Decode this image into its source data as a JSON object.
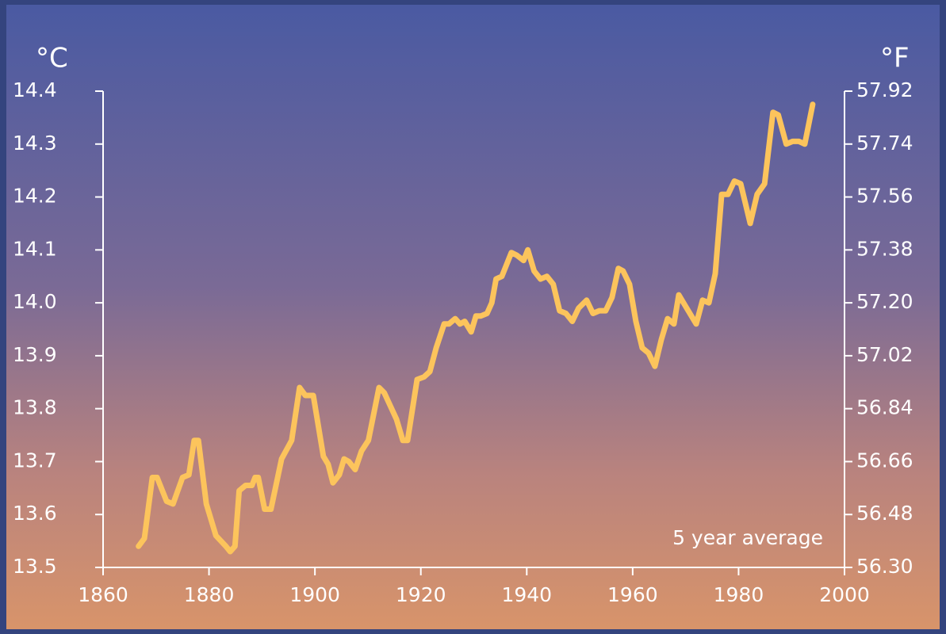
{
  "chart_data": {
    "type": "line",
    "ylabel": "°C",
    "y2label": "°F",
    "annotation": "5 year average",
    "color": "#fcc45c",
    "xlim": [
      1860,
      2000
    ],
    "xticks": [
      1860,
      1880,
      1900,
      1920,
      1940,
      1960,
      1980,
      2000
    ],
    "ylim": [
      13.5,
      14.4
    ],
    "yticks": [
      13.5,
      13.6,
      13.7,
      13.8,
      13.9,
      {
        "value": 14,
        "label": "14.0"
      },
      14.1,
      14.2,
      14.3,
      14.4
    ],
    "y2lim": [
      56.3,
      57.92
    ],
    "y2ticks": [
      {
        "value": 56.3,
        "label": "56.30"
      },
      56.48,
      56.66,
      56.84,
      57.02,
      {
        "value": 57.2,
        "label": "57.20"
      },
      57.38,
      57.56,
      57.74,
      57.92
    ],
    "x": [
      1866.7,
      1867.8,
      1869.3,
      1870.2,
      1872,
      1873.2,
      1875,
      1876.2,
      1877.2,
      1878,
      1879.5,
      1881.3,
      1883.2,
      1884,
      1884.9,
      1885.7,
      1886.9,
      1888.1,
      1888.7,
      1889.3,
      1890.5,
      1891.7,
      1893.7,
      1895.6,
      1897.1,
      1898.2,
      1899.7,
      1901.6,
      1902.5,
      1903.4,
      1904.6,
      1905.5,
      1906.4,
      1907.6,
      1908.8,
      1910.1,
      1912.1,
      1913.1,
      1915.4,
      1916.6,
      1917.5,
      1919.3,
      1920.6,
      1921.7,
      1922.9,
      1924.4,
      1925.3,
      1926.5,
      1927.4,
      1928.3,
      1929.5,
      1930.4,
      1931.3,
      1932.5,
      1933.4,
      1934.2,
      1935.3,
      1937.1,
      1938.1,
      1939.4,
      1940.2,
      1941.4,
      1942.6,
      1943.8,
      1945,
      1946.2,
      1947.4,
      1948.6,
      1949.8,
      1951.3,
      1952.5,
      1953.7,
      1954.9,
      1956.1,
      1957.3,
      1958.2,
      1959.4,
      1960.6,
      1961.8,
      1963,
      1964.2,
      1965.4,
      1966.6,
      1967.8,
      1968.7,
      1969.9,
      1972,
      1973.2,
      1974.4,
      1975.6,
      1976.8,
      1978,
      1979.2,
      1980.4,
      1982.2,
      1983.5,
      1984.9,
      1986.5,
      1987.5,
      1989,
      1990.2,
      1991.4,
      1992.5,
      1994
    ],
    "values": [
      13.54,
      13.555,
      13.67,
      13.67,
      13.625,
      13.62,
      13.67,
      13.675,
      13.74,
      13.74,
      13.62,
      13.56,
      13.54,
      13.53,
      13.54,
      13.645,
      13.655,
      13.655,
      13.67,
      13.67,
      13.61,
      13.61,
      13.705,
      13.74,
      13.84,
      13.825,
      13.825,
      13.71,
      13.695,
      13.66,
      13.675,
      13.705,
      13.7,
      13.685,
      13.72,
      13.74,
      13.84,
      13.83,
      13.78,
      13.74,
      13.74,
      13.855,
      13.86,
      13.87,
      13.915,
      13.96,
      13.96,
      13.97,
      13.96,
      13.965,
      13.945,
      13.975,
      13.975,
      13.98,
      14.0,
      14.045,
      14.05,
      14.095,
      14.09,
      14.08,
      14.1,
      14.06,
      14.045,
      14.05,
      14.035,
      13.985,
      13.98,
      13.965,
      13.99,
      14.005,
      13.98,
      13.985,
      13.985,
      14.01,
      14.065,
      14.06,
      14.035,
      13.965,
      13.915,
      13.905,
      13.88,
      13.93,
      13.97,
      13.96,
      14.015,
      13.995,
      13.96,
      14.005,
      14.0,
      14.055,
      14.205,
      14.205,
      14.23,
      14.225,
      14.15,
      14.205,
      14.225,
      14.36,
      14.355,
      14.3,
      14.305,
      14.305,
      14.3,
      14.375
    ]
  }
}
